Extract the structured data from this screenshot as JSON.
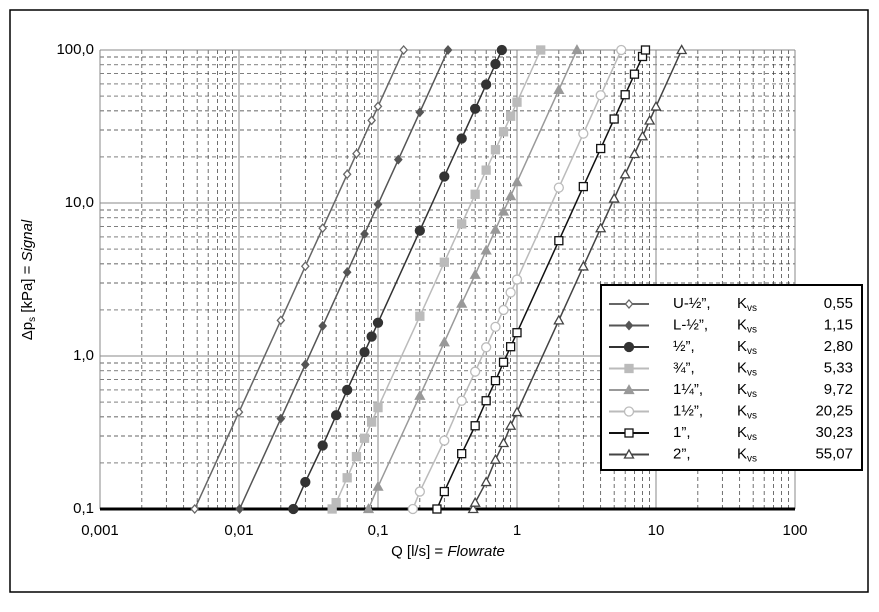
{
  "chart_data": {
    "type": "line",
    "xlabel": {
      "plain": "Q [l/s] = ",
      "italic": "Flowrate"
    },
    "ylabel": {
      "main": "Δp",
      "sub": "s",
      "plain": " [kPa] = ",
      "italic": "Signal"
    },
    "log_x": true,
    "log_y": true,
    "grid": true,
    "xlim": [
      0.001,
      100
    ],
    "ylim": [
      0.1,
      100
    ],
    "xticks": [
      {
        "value": 0.001,
        "label": "0,001"
      },
      {
        "value": 0.01,
        "label": "0,01"
      },
      {
        "value": 0.1,
        "label": "0,1"
      },
      1,
      10,
      100
    ],
    "yticks": [
      {
        "value": 0.1,
        "label": "0,1"
      },
      {
        "value": 1,
        "label": "1,0"
      },
      {
        "value": 10,
        "label": "10,0"
      },
      {
        "value": 100,
        "label": "100,0"
      }
    ],
    "xminor": [
      0.002,
      0.003,
      0.004,
      0.005,
      0.006,
      0.007,
      0.008,
      0.009,
      0.02,
      0.03,
      0.04,
      0.05,
      0.06,
      0.07,
      0.08,
      0.09,
      0.2,
      0.3,
      0.4,
      0.5,
      0.6,
      0.7,
      0.8,
      0.9,
      2,
      3,
      4,
      5,
      6,
      7,
      8,
      9,
      20,
      30,
      40,
      50,
      60,
      70,
      80,
      90
    ],
    "yminor": [
      0.2,
      0.3,
      0.4,
      0.5,
      0.6,
      0.7,
      0.8,
      0.9,
      2,
      3,
      4,
      5,
      6,
      7,
      8,
      9,
      20,
      30,
      40,
      50,
      60,
      70,
      80,
      90
    ],
    "legend_position": "lower right",
    "legend_key": {
      "symbol": "K",
      "sub": "vs"
    },
    "series": [
      {
        "name": "U-½”,",
        "kvs": "0,55",
        "color": "#666666",
        "marker": "diamond",
        "filled": false,
        "x": [
          0.0048,
          0.01,
          0.02,
          0.03,
          0.04,
          0.06,
          0.07,
          0.09,
          0.1,
          0.153
        ],
        "values": [
          0.1,
          0.43,
          1.71,
          3.86,
          6.85,
          15.4,
          21,
          34.7,
          42.8,
          100
        ]
      },
      {
        "name": "L-½”,",
        "kvs": "1,15",
        "color": "#555555",
        "marker": "diamond",
        "filled": true,
        "x": [
          0.0101,
          0.02,
          0.03,
          0.04,
          0.06,
          0.08,
          0.1,
          0.14,
          0.2,
          0.319
        ],
        "values": [
          0.1,
          0.39,
          0.88,
          1.57,
          3.53,
          6.27,
          9.8,
          19.2,
          39.2,
          100
        ]
      },
      {
        "name": "½”,",
        "kvs": "2,80",
        "color": "#333333",
        "marker": "circle",
        "filled": true,
        "x": [
          0.0246,
          0.03,
          0.04,
          0.05,
          0.06,
          0.08,
          0.09,
          0.1,
          0.2,
          0.3,
          0.4,
          0.5,
          0.6,
          0.7,
          0.778
        ],
        "values": [
          0.1,
          0.15,
          0.26,
          0.41,
          0.6,
          1.06,
          1.34,
          1.65,
          6.6,
          14.9,
          26.4,
          41.3,
          59.5,
          81,
          100
        ]
      },
      {
        "name": "¾”,",
        "kvs": "5,33",
        "color": "#bbbbbb",
        "marker": "square",
        "filled": true,
        "x": [
          0.0468,
          0.05,
          0.06,
          0.07,
          0.08,
          0.09,
          0.1,
          0.2,
          0.3,
          0.4,
          0.5,
          0.6,
          0.7,
          0.8,
          0.9,
          1,
          1.481
        ],
        "values": [
          0.1,
          0.11,
          0.16,
          0.22,
          0.29,
          0.37,
          0.46,
          1.82,
          4.1,
          7.3,
          11.4,
          16.4,
          22.3,
          29.2,
          36.9,
          45.6,
          100
        ]
      },
      {
        "name": "1¼”,",
        "kvs": "9,72",
        "color": "#999999",
        "marker": "triangle",
        "filled": true,
        "x": [
          0.0854,
          0.1,
          0.2,
          0.3,
          0.4,
          0.5,
          0.6,
          0.7,
          0.8,
          0.9,
          1,
          2,
          2.7
        ],
        "values": [
          0.1,
          0.14,
          0.55,
          1.23,
          2.2,
          3.4,
          4.9,
          6.7,
          8.8,
          11.1,
          13.7,
          54.9,
          100
        ]
      },
      {
        "name": "1½”,",
        "kvs": "20,25",
        "color": "#bbbbbb",
        "marker": "circle",
        "filled": false,
        "x": [
          0.178,
          0.2,
          0.3,
          0.4,
          0.5,
          0.6,
          0.7,
          0.8,
          0.9,
          1,
          2,
          3,
          4,
          5.625
        ],
        "values": [
          0.1,
          0.13,
          0.28,
          0.51,
          0.79,
          1.14,
          1.55,
          2.0,
          2.6,
          3.16,
          12.6,
          28.4,
          50.6,
          100
        ]
      },
      {
        "name": "1”,",
        "kvs": "30,23",
        "color": "#111111",
        "marker": "square",
        "filled": false,
        "x": [
          0.2655,
          0.3,
          0.4,
          0.5,
          0.6,
          0.7,
          0.8,
          0.9,
          1,
          2,
          3,
          4,
          5,
          6,
          7,
          8,
          8.4
        ],
        "values": [
          0.1,
          0.13,
          0.23,
          0.35,
          0.51,
          0.69,
          0.91,
          1.15,
          1.42,
          5.67,
          12.8,
          22.7,
          35.4,
          51,
          69.5,
          90.7,
          100
        ]
      },
      {
        "name": "2”,",
        "kvs": "55,07",
        "color": "#444444",
        "marker": "triangle",
        "filled": false,
        "x": [
          0.484,
          0.5,
          0.6,
          0.7,
          0.8,
          0.9,
          1,
          2,
          3,
          4,
          5,
          6,
          7,
          8,
          9,
          10,
          15.3
        ],
        "values": [
          0.1,
          0.11,
          0.15,
          0.21,
          0.27,
          0.35,
          0.43,
          1.71,
          3.85,
          6.84,
          10.7,
          15.4,
          20.9,
          27.3,
          34.6,
          42.7,
          100
        ]
      }
    ]
  }
}
